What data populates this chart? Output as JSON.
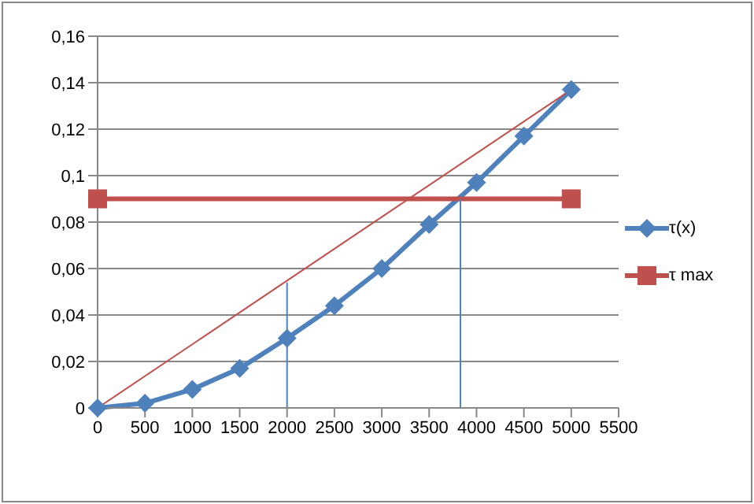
{
  "chart_data": {
    "type": "line",
    "xlim": [
      0,
      5500
    ],
    "xticks": [
      0,
      500,
      1000,
      1500,
      2000,
      2500,
      3000,
      3500,
      4000,
      4500,
      5000,
      5500
    ],
    "ylim": [
      0,
      0.16
    ],
    "yticks": [
      0,
      {
        "value": 0.02,
        "label": "0,02"
      },
      {
        "value": 0.04,
        "label": "0,04"
      },
      {
        "value": 0.06,
        "label": "0,06"
      },
      {
        "value": 0.08,
        "label": "0,08"
      },
      {
        "value": 0.1,
        "label": "0,1"
      },
      {
        "value": 0.12,
        "label": "0,12"
      },
      {
        "value": 0.14,
        "label": "0,14"
      },
      {
        "value": 0.16,
        "label": "0,16"
      }
    ],
    "grid": "y",
    "legend": "right",
    "line_style": "solid",
    "x": [
      0,
      500,
      1000,
      1500,
      2000,
      2500,
      3000,
      3500,
      4000,
      4500,
      5000
    ],
    "series": [
      {
        "name": "τ(x)",
        "color": "#4f81bd",
        "marker": "diamond",
        "values": [
          0,
          0.002,
          0.008,
          0.017,
          0.03,
          0.044,
          0.06,
          0.079,
          0.097,
          0.117,
          0.137
        ]
      },
      {
        "name": "τ max",
        "color": "#c0504d",
        "marker": "square",
        "x": [
          0,
          5000
        ],
        "values": [
          0.09,
          0.09
        ]
      },
      {
        "color": "#c0504d",
        "marker": "none",
        "x": [
          0,
          5000
        ],
        "values": [
          0,
          0.137
        ]
      },
      {
        "color": "#4f81bd",
        "marker": "none",
        "x": [
          2000,
          2000
        ],
        "values": [
          0,
          0.054
        ]
      },
      {
        "color": "#4f81bd",
        "marker": "none",
        "x": [
          3830,
          3830
        ],
        "values": [
          0,
          0.09
        ]
      }
    ]
  }
}
